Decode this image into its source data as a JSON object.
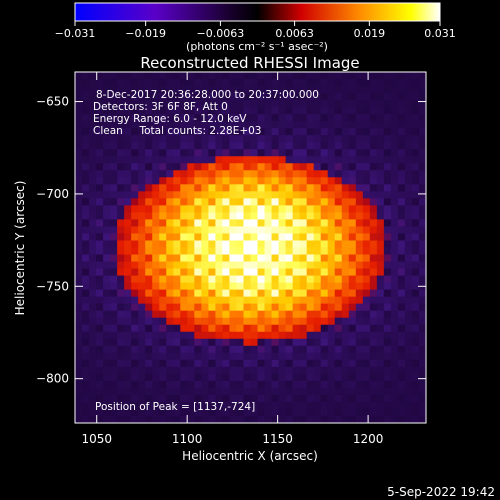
{
  "chart_data": {
    "type": "heatmap",
    "title": "Reconstructed RHESSI Image",
    "xlabel": "Heliocentric X (arcsec)",
    "ylabel": "Heliocentric Y (arcsec)",
    "xlim": [
      1038,
      1232
    ],
    "ylim": [
      -824,
      -634
    ],
    "x_ticks": [
      1050,
      1100,
      1150,
      1200
    ],
    "x_tick_labels": [
      "1050",
      "1100",
      "1150",
      "1200"
    ],
    "y_ticks": [
      -650,
      -700,
      -750,
      -800
    ],
    "y_tick_labels": [
      "−650",
      "−700",
      "−750",
      "−800"
    ],
    "colorbar": {
      "min": -0.031,
      "max": 0.031,
      "ticks": [
        -0.031,
        -0.019,
        -0.0063,
        0.0063,
        0.019,
        0.031
      ],
      "tick_labels": [
        "−0.031",
        "−0.019",
        "−0.0063",
        "0.0063",
        "0.019",
        "0.031"
      ],
      "unit_label": "(photons cm⁻² s⁻¹ asec⁻²)",
      "colors": [
        "#0000ff",
        "#6a00c8",
        "#000000",
        "#ff0000",
        "#ff8c00",
        "#ffff00",
        "#ffffff"
      ]
    },
    "annotations": [
      "8-Dec-2017 20:36:28.000 to 20:37:00.000",
      "Detectors: 3F 6F 8F, Att 0",
      "Energy Range: 6.0 - 12.0 keV",
      "Clean     Total counts: 2.28E+03"
    ],
    "peak_label": "Position of Peak = [1137,-724]",
    "peak": {
      "x": 1137,
      "y": -724
    },
    "source_region": {
      "x_center": 1135,
      "y_center": -730,
      "x_halfwidth": 72,
      "y_halfwidth": 48
    },
    "background_colors": {
      "outer": "#3a1a78",
      "inner_bright": "#ffff80",
      "peak": "#ffffff"
    }
  },
  "footer": {
    "timestamp": "5-Sep-2022 19:42"
  }
}
